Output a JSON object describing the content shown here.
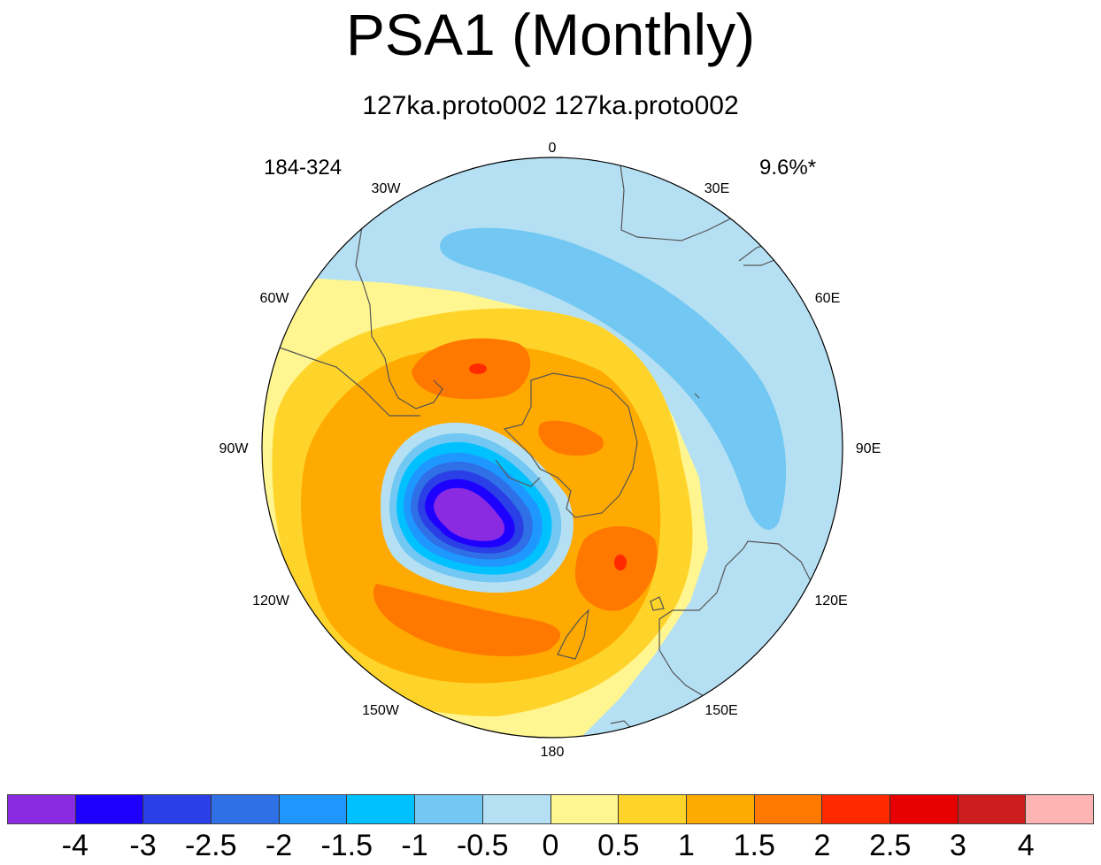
{
  "title": "PSA1 (Monthly)",
  "subtitle": "127ka.proto002  127ka.proto002",
  "years": "184-324",
  "variance": "9.6%*",
  "longitude_labels": {
    "lon_0": "0",
    "lon_30e": "30E",
    "lon_60e": "60E",
    "lon_90e": "90E",
    "lon_120e": "120E",
    "lon_150e": "150E",
    "lon_180": "180",
    "lon_150w": "150W",
    "lon_120w": "120W",
    "lon_90w": "90W",
    "lon_60w": "60W",
    "lon_30w": "30W"
  },
  "colorbar": {
    "colors": [
      "#8a2be2",
      "#1e00ff",
      "#2a3fe6",
      "#2f70e6",
      "#1e98ff",
      "#00c1ff",
      "#72c8f2",
      "#b5e0f4",
      "#fff691",
      "#ffd42a",
      "#ffaa00",
      "#ff7800",
      "#ff2a00",
      "#e60000",
      "#cc1e1e",
      "#ffb4b4"
    ],
    "labels": [
      "-4",
      "-3",
      "-2.5",
      "-2",
      "-1.5",
      "-1",
      "-0.5",
      "0",
      "0.5",
      "1",
      "1.5",
      "2",
      "2.5",
      "3",
      "4"
    ]
  }
}
